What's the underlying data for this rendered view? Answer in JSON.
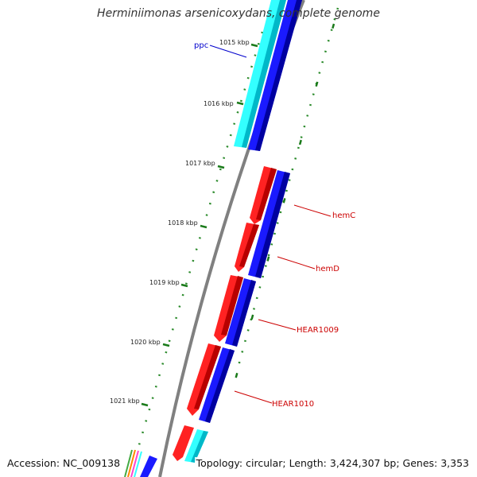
{
  "title": "Herminiimonas arsenicoxydans, complete genome",
  "accession": "Accession: NC_009138",
  "topology": "Topology: circular; Length: 3,424,307 bp; Genes: 3,353",
  "ticks": [
    "1015 kbp",
    "1016 kbp",
    "1017 kbp",
    "1018 kbp",
    "1019 kbp",
    "1020 kbp",
    "1021 kbp"
  ],
  "gene_labels": [
    {
      "text": "ppc",
      "color": "#0000cc"
    },
    {
      "text": "hemC",
      "color": "#cc0000"
    },
    {
      "text": "hemD",
      "color": "#cc0000"
    },
    {
      "text": "HEAR1009",
      "color": "#cc0000"
    },
    {
      "text": "HEAR1010",
      "color": "#cc0000"
    }
  ],
  "colors": {
    "forward_cds": "#ff0000",
    "reverse_cds": "#0000ff",
    "rna": "#00e0e0",
    "backbone": "#808080",
    "tick": "#1a7a1a"
  }
}
